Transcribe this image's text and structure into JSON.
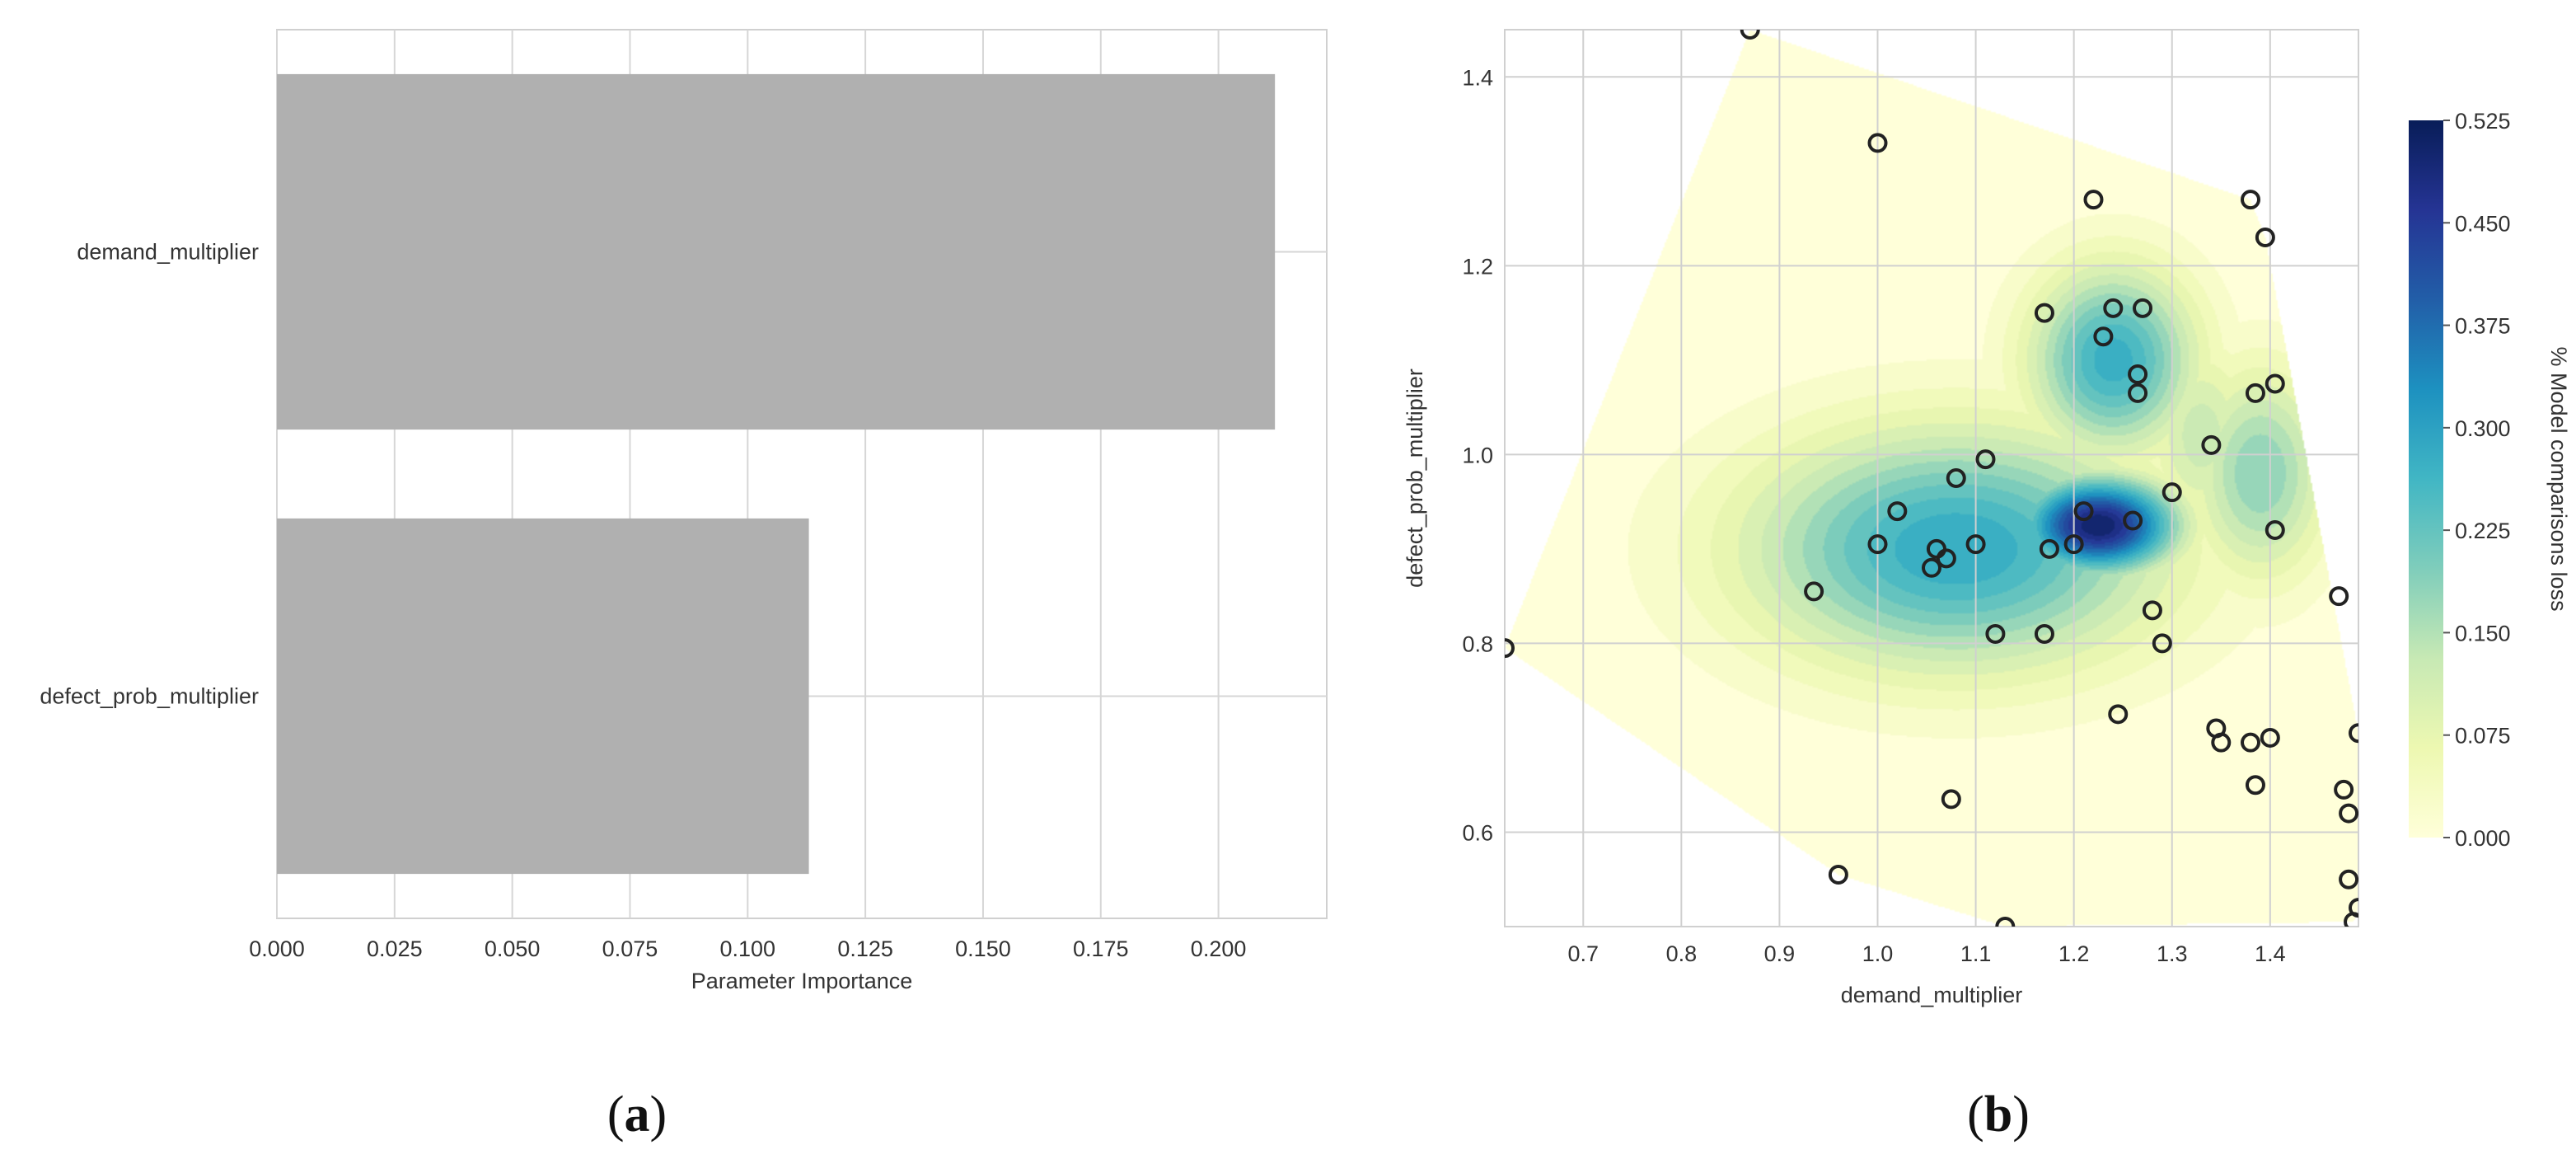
{
  "panel_labels": {
    "a": "(a)",
    "b": "(b)",
    "a_letter": "a",
    "b_letter": "b"
  },
  "chart_data": [
    {
      "type": "bar",
      "orientation": "horizontal",
      "categories": [
        "demand_multiplier",
        "defect_prob_multiplier"
      ],
      "values": [
        0.212,
        0.113
      ],
      "xlabel": "Parameter Importance",
      "ylabel": "",
      "xlim": [
        0,
        0.223
      ],
      "xticks": [
        "0.000",
        "0.025",
        "0.050",
        "0.075",
        "0.100",
        "0.125",
        "0.150",
        "0.175",
        "0.200"
      ],
      "grid": true,
      "bar_color": "#b0b0b0"
    },
    {
      "type": "scatter",
      "overlay": "contour",
      "xlabel": "demand_multiplier",
      "ylabel": "defect_prob_multiplier",
      "xlim": [
        0.62,
        1.49
      ],
      "ylim": [
        0.5,
        1.45
      ],
      "xticks": [
        "0.7",
        "0.8",
        "0.9",
        "1.0",
        "1.1",
        "1.2",
        "1.3",
        "1.4"
      ],
      "yticks": [
        "0.6",
        "0.8",
        "1.0",
        "1.2",
        "1.4"
      ],
      "colorbar": {
        "label": "% Model comparisons loss",
        "min": 0,
        "max": 0.525,
        "ticks": [
          "0.000",
          "0.075",
          "0.150",
          "0.225",
          "0.300",
          "0.375",
          "0.450",
          "0.525"
        ],
        "colormap": "YlGnBu",
        "colors": [
          "#ffffd9",
          "#edf8b1",
          "#c7e9b4",
          "#7fcdbb",
          "#41b6c4",
          "#1d91c0",
          "#225ea8",
          "#253494",
          "#081d58"
        ]
      },
      "grid": true,
      "points": [
        {
          "x": 0.87,
          "y": 1.45
        },
        {
          "x": 1.0,
          "y": 1.33
        },
        {
          "x": 1.22,
          "y": 1.27
        },
        {
          "x": 1.38,
          "y": 1.27
        },
        {
          "x": 1.395,
          "y": 1.23
        },
        {
          "x": 1.17,
          "y": 1.15
        },
        {
          "x": 1.24,
          "y": 1.155
        },
        {
          "x": 1.27,
          "y": 1.155
        },
        {
          "x": 1.23,
          "y": 1.125
        },
        {
          "x": 1.265,
          "y": 1.085
        },
        {
          "x": 1.265,
          "y": 1.065
        },
        {
          "x": 1.385,
          "y": 1.065
        },
        {
          "x": 1.405,
          "y": 1.075
        },
        {
          "x": 1.34,
          "y": 1.01
        },
        {
          "x": 1.08,
          "y": 0.975
        },
        {
          "x": 1.11,
          "y": 0.995
        },
        {
          "x": 1.3,
          "y": 0.96
        },
        {
          "x": 1.02,
          "y": 0.94
        },
        {
          "x": 1.21,
          "y": 0.94
        },
        {
          "x": 1.26,
          "y": 0.93
        },
        {
          "x": 1.405,
          "y": 0.92
        },
        {
          "x": 1.0,
          "y": 0.905
        },
        {
          "x": 1.06,
          "y": 0.9
        },
        {
          "x": 1.1,
          "y": 0.905
        },
        {
          "x": 1.175,
          "y": 0.9
        },
        {
          "x": 1.2,
          "y": 0.905
        },
        {
          "x": 1.07,
          "y": 0.89
        },
        {
          "x": 1.055,
          "y": 0.88
        },
        {
          "x": 0.935,
          "y": 0.855
        },
        {
          "x": 1.47,
          "y": 0.85
        },
        {
          "x": 1.28,
          "y": 0.835
        },
        {
          "x": 1.12,
          "y": 0.81
        },
        {
          "x": 1.17,
          "y": 0.81
        },
        {
          "x": 1.29,
          "y": 0.8
        },
        {
          "x": 0.62,
          "y": 0.795
        },
        {
          "x": 1.245,
          "y": 0.725
        },
        {
          "x": 1.345,
          "y": 0.71
        },
        {
          "x": 1.35,
          "y": 0.695
        },
        {
          "x": 1.38,
          "y": 0.695
        },
        {
          "x": 1.4,
          "y": 0.7
        },
        {
          "x": 1.49,
          "y": 0.705
        },
        {
          "x": 1.385,
          "y": 0.65
        },
        {
          "x": 1.475,
          "y": 0.645
        },
        {
          "x": 1.075,
          "y": 0.635
        },
        {
          "x": 1.48,
          "y": 0.62
        },
        {
          "x": 0.96,
          "y": 0.555
        },
        {
          "x": 1.48,
          "y": 0.55
        },
        {
          "x": 1.13,
          "y": 0.5
        },
        {
          "x": 1.49,
          "y": 0.52
        },
        {
          "x": 1.485,
          "y": 0.505
        }
      ],
      "hull": [
        {
          "x": 0.87,
          "y": 1.45
        },
        {
          "x": 1.38,
          "y": 1.27
        },
        {
          "x": 1.395,
          "y": 1.23
        },
        {
          "x": 1.49,
          "y": 0.705
        },
        {
          "x": 1.49,
          "y": 0.52
        },
        {
          "x": 1.485,
          "y": 0.505
        },
        {
          "x": 1.13,
          "y": 0.5
        },
        {
          "x": 0.96,
          "y": 0.555
        },
        {
          "x": 0.62,
          "y": 0.795
        }
      ],
      "peaks": [
        {
          "x": 1.225,
          "y": 0.925,
          "value": 0.525,
          "sx": 0.055,
          "sy": 0.035
        },
        {
          "x": 1.08,
          "y": 0.9,
          "value": 0.3,
          "sx": 0.15,
          "sy": 0.09
        },
        {
          "x": 1.24,
          "y": 1.1,
          "value": 0.29,
          "sx": 0.06,
          "sy": 0.07
        },
        {
          "x": 1.39,
          "y": 0.98,
          "value": 0.2,
          "sx": 0.05,
          "sy": 0.08
        },
        {
          "x": 1.33,
          "y": 1.02,
          "value": 0.14,
          "sx": 0.04,
          "sy": 0.07
        }
      ]
    }
  ]
}
